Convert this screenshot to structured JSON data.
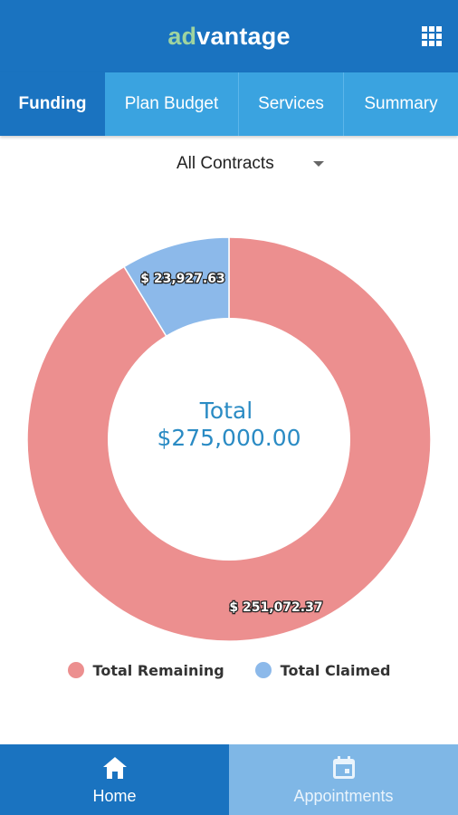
{
  "header": {
    "logo_prefix": "ad",
    "logo_suffix": "vantage",
    "menu_icon": "grid-icon",
    "accent_color": "#9fd49f",
    "bar_color": "#1a73c0"
  },
  "tabs": [
    {
      "label": "Funding",
      "active": true
    },
    {
      "label": "Plan Budget",
      "active": false
    },
    {
      "label": "Services",
      "active": false
    },
    {
      "label": "Summary",
      "active": false
    }
  ],
  "filter": {
    "selected": "All Contracts",
    "icon": "chevron-down-icon"
  },
  "chart_data": {
    "type": "pie",
    "center_label": "Total",
    "center_value": "$275,000.00",
    "series": [
      {
        "name": "Total Remaining",
        "value": 251072.37,
        "label": "$ 251,072.37",
        "color": "#ec8f8f"
      },
      {
        "name": "Total Claimed",
        "value": 23927.63,
        "label": "$ 23,927.63",
        "color": "#8cb9ea"
      }
    ],
    "legend_position": "bottom"
  },
  "bottom_nav": [
    {
      "label": "Home",
      "icon": "home-icon",
      "active": true
    },
    {
      "label": "Appointments",
      "icon": "calendar-icon",
      "active": false
    }
  ]
}
